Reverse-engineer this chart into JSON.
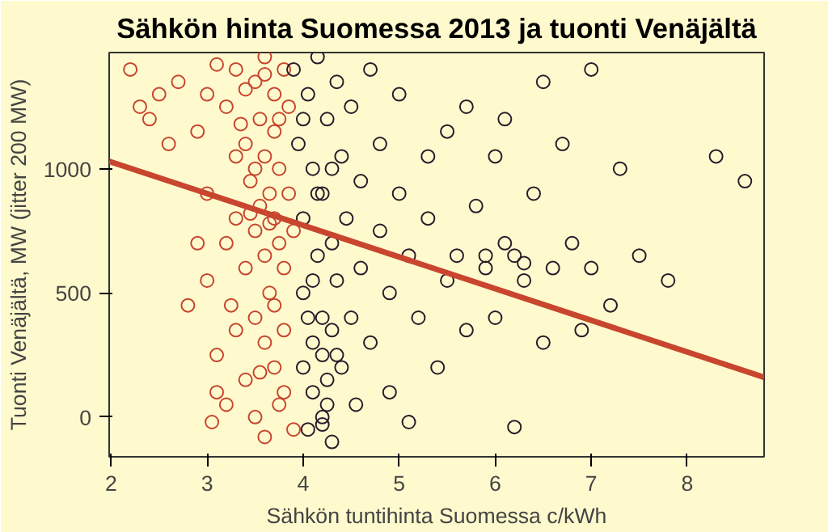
{
  "chart_data": {
    "type": "scatter",
    "title": "Sähkön hinta Suomessa 2013 ja tuonti Venäjältä",
    "xlabel": "Sähkön tuntihinta Suomessa c/kWh",
    "ylabel": "Tuonti Venäjältä, MW (jitter 200 MW)",
    "xlim": [
      1.98,
      8.8
    ],
    "ylim": [
      -160,
      1468
    ],
    "xticks": [
      2,
      3,
      4,
      5,
      6,
      7,
      8
    ],
    "yticks": [
      0,
      500,
      1000
    ],
    "grid": false,
    "series": [
      {
        "color": "#c8452e",
        "marker": "circle",
        "x": [
          2.2,
          2.5,
          2.4,
          2.7,
          2.9,
          2.8,
          2.9,
          3.0,
          3.0,
          3.1,
          3.1,
          3.05,
          3.2,
          3.2,
          3.3,
          3.3,
          3.3,
          3.4,
          3.4,
          3.4,
          3.45,
          3.5,
          3.5,
          3.5,
          3.5,
          3.55,
          3.55,
          3.6,
          3.6,
          3.6,
          3.6,
          3.6,
          3.65,
          3.65,
          3.7,
          3.7,
          3.7,
          3.7,
          3.75,
          3.75,
          3.75,
          3.8,
          3.8,
          3.8,
          3.85,
          3.85,
          3.9,
          3.9,
          3.6,
          3.4,
          3.5,
          3.3,
          3.2,
          3.25,
          3.7,
          3.8,
          3.55,
          3.65,
          3.45,
          3.75,
          2.6,
          2.3,
          3.0,
          3.1,
          3.35
        ],
        "values": [
          1400,
          1300,
          1200,
          1350,
          1150,
          450,
          700,
          550,
          900,
          250,
          100,
          -20,
          1250,
          50,
          1400,
          800,
          350,
          1100,
          600,
          150,
          950,
          1350,
          750,
          400,
          0,
          1200,
          850,
          1450,
          1050,
          650,
          300,
          -80,
          900,
          500,
          1300,
          800,
          1150,
          200,
          700,
          1000,
          50,
          1400,
          600,
          350,
          900,
          1250,
          750,
          -50,
          1380,
          1320,
          1000,
          1050,
          700,
          450,
          450,
          100,
          180,
          780,
          820,
          1200,
          1100,
          1250,
          1300,
          1420,
          1180
        ]
      },
      {
        "color": "#2b1b2b",
        "marker": "circle",
        "x": [
          3.9,
          3.95,
          4.0,
          4.0,
          4.0,
          4.05,
          4.05,
          4.1,
          4.1,
          4.1,
          4.15,
          4.15,
          4.2,
          4.2,
          4.2,
          4.2,
          4.25,
          4.25,
          4.3,
          4.3,
          4.3,
          4.35,
          4.35,
          4.4,
          4.4,
          4.45,
          4.5,
          4.5,
          4.55,
          4.6,
          4.6,
          4.7,
          4.7,
          4.8,
          4.8,
          4.9,
          4.9,
          5.0,
          5.0,
          5.1,
          5.1,
          5.2,
          5.3,
          5.3,
          5.4,
          5.5,
          5.5,
          5.6,
          5.7,
          5.7,
          5.8,
          5.9,
          6.0,
          6.0,
          6.1,
          6.2,
          6.2,
          6.3,
          6.4,
          6.5,
          6.5,
          6.6,
          6.7,
          6.8,
          6.9,
          7.0,
          7.0,
          7.2,
          7.3,
          7.5,
          7.8,
          8.3,
          8.6,
          4.0,
          4.15,
          4.25,
          4.1,
          4.3,
          4.05,
          4.2,
          4.35,
          6.1,
          5.9,
          6.3
        ],
        "values": [
          1400,
          1100,
          800,
          500,
          200,
          1300,
          -50,
          1000,
          300,
          100,
          650,
          1450,
          0,
          250,
          400,
          900,
          1200,
          150,
          700,
          350,
          -100,
          1350,
          550,
          1050,
          200,
          800,
          1250,
          400,
          50,
          950,
          600,
          1400,
          300,
          750,
          1100,
          500,
          100,
          900,
          1300,
          650,
          -20,
          400,
          1050,
          800,
          200,
          1150,
          550,
          650,
          1250,
          350,
          850,
          600,
          1050,
          400,
          1200,
          650,
          -40,
          550,
          900,
          1350,
          300,
          600,
          1100,
          700,
          350,
          1400,
          600,
          450,
          1000,
          650,
          550,
          1050,
          950,
          1200,
          900,
          50,
          550,
          1000,
          400,
          -30,
          250,
          700,
          650,
          620
        ]
      },
      {
        "type": "line",
        "color": "#c8452e",
        "x": [
          1.98,
          8.8
        ],
        "values": [
          1030,
          160
        ]
      }
    ]
  }
}
